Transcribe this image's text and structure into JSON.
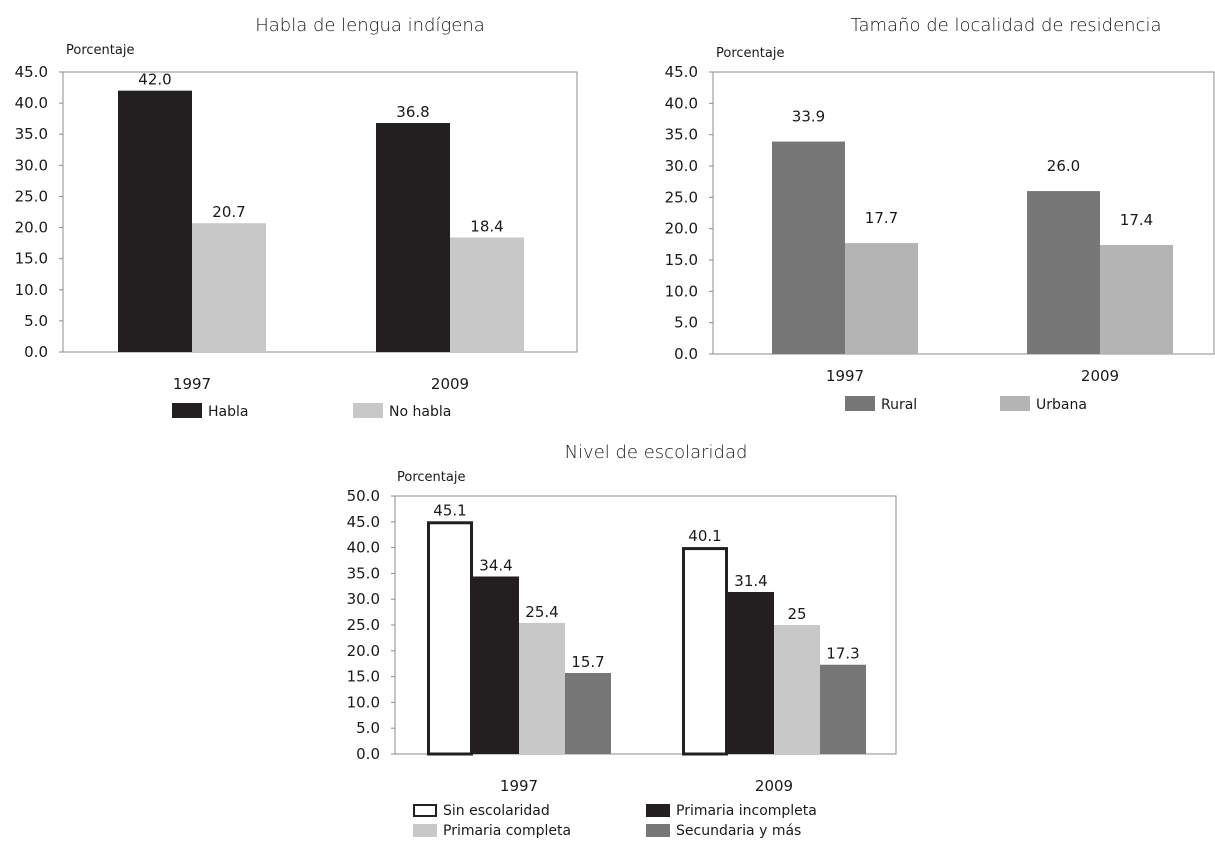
{
  "chart_data": [
    {
      "type": "bar",
      "title": "Habla de lengua indígena",
      "ylabel": "Porcentaje",
      "categories": [
        "1997",
        "2009"
      ],
      "yticks": [
        "0.0",
        "5.0",
        "10.0",
        "15.0",
        "20.0",
        "25.0",
        "30.0",
        "35.0",
        "40.0",
        "45.0"
      ],
      "ylim": [
        0,
        45
      ],
      "series": [
        {
          "name": "Habla",
          "values": [
            42.0,
            36.8
          ],
          "labels": [
            "42.0",
            "36.8"
          ],
          "color": "#231f20"
        },
        {
          "name": "No habla",
          "values": [
            20.7,
            18.4
          ],
          "labels": [
            "20.7",
            "18.4"
          ],
          "color": "#c8c8c8"
        }
      ]
    },
    {
      "type": "bar",
      "title": "Tamaño de localidad de residencia",
      "ylabel": "Porcentaje",
      "categories": [
        "1997",
        "2009"
      ],
      "yticks": [
        "0.0",
        "5.0",
        "10.0",
        "15.0",
        "20.0",
        "25.0",
        "30.0",
        "35.0",
        "40.0",
        "45.0"
      ],
      "ylim": [
        0,
        45
      ],
      "series": [
        {
          "name": "Rural",
          "values": [
            33.9,
            26.0
          ],
          "labels": [
            "33.9",
            "26.0"
          ],
          "color": "#777777"
        },
        {
          "name": "Urbana",
          "values": [
            17.7,
            17.4
          ],
          "labels": [
            "17.7",
            "17.4"
          ],
          "color": "#b4b4b4"
        }
      ]
    },
    {
      "type": "bar",
      "title": "Nivel de escolaridad",
      "ylabel": "Porcentaje",
      "categories": [
        "1997",
        "2009"
      ],
      "yticks": [
        "0.0",
        "5.0",
        "10.0",
        "15.0",
        "20.0",
        "25.0",
        "30.0",
        "35.0",
        "40.0",
        "45.0",
        "50.0"
      ],
      "ylim": [
        0,
        50
      ],
      "series": [
        {
          "name": "Sin escolaridad",
          "values": [
            45.1,
            40.1
          ],
          "labels": [
            "45.1",
            "40.1"
          ],
          "color": "#ffffff",
          "stroke": "#231f20"
        },
        {
          "name": "Primaria incompleta",
          "values": [
            34.4,
            31.4
          ],
          "labels": [
            "34.4",
            "31.4"
          ],
          "color": "#231f20"
        },
        {
          "name": "Primaria completa",
          "values": [
            25.4,
            25
          ],
          "labels": [
            "25.4",
            "25"
          ],
          "color": "#c8c8c8"
        },
        {
          "name": "Secundaria y más",
          "values": [
            15.7,
            17.3
          ],
          "labels": [
            "15.7",
            "17.3"
          ],
          "color": "#777777"
        }
      ]
    }
  ]
}
